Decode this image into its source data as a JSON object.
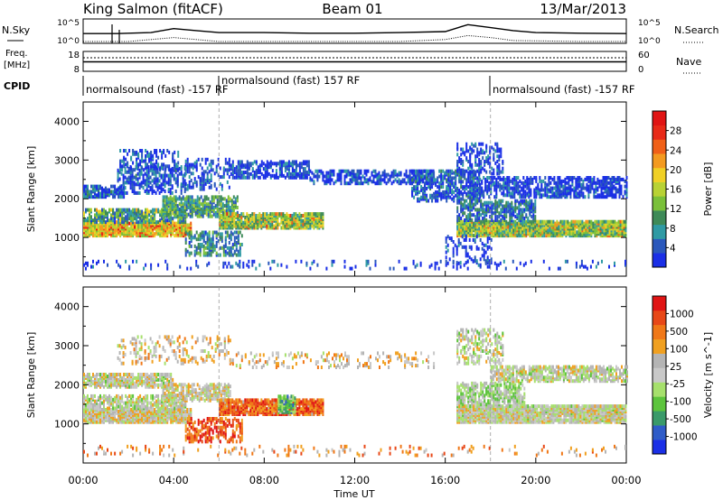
{
  "header": {
    "station": "King Salmon (fitACF)",
    "beam": "Beam 01",
    "date": "13/Mar/2013"
  },
  "time_axis": {
    "label": "Time UT",
    "ticks": [
      "00:00",
      "04:00",
      "08:00",
      "12:00",
      "16:00",
      "20:00",
      "00:00"
    ]
  },
  "top_strips": {
    "nsky": {
      "label": "N.Sky",
      "ticks": [
        "10^5",
        "10^0"
      ],
      "right_label": "N.Search",
      "right_ticks": [
        "10^5",
        "10^0"
      ]
    },
    "freq": {
      "label_line1": "Freq.",
      "label_line2": "[MHz]",
      "ticks": [
        "18",
        "8"
      ],
      "right_label": "Nave",
      "right_ticks": [
        "60",
        "0"
      ]
    },
    "cpid": {
      "label": "CPID",
      "segments": [
        {
          "start_h": 0.0,
          "end_h": 6.0,
          "text": "normalsound (fast) -157 RF"
        },
        {
          "start_h": 6.0,
          "end_h": 18.0,
          "text": "normalsound (fast) 157 RF"
        },
        {
          "start_h": 18.0,
          "end_h": 24.0,
          "text": "normalsound (fast) -157 RF"
        }
      ]
    }
  },
  "chart_data": [
    {
      "type": "heatmap",
      "panel": "power",
      "ylabel": "Slant Range [km]",
      "xlim_hours": [
        0,
        24
      ],
      "ylim": [
        0,
        4500
      ],
      "yticks": [
        1000,
        2000,
        3000,
        4000
      ],
      "colorbar": {
        "label": "Power [dB]",
        "ticks": [
          "4",
          "8",
          "12",
          "16",
          "20",
          "24",
          "28"
        ],
        "colors": [
          "#1a2fe6",
          "#2a58bc",
          "#2f9aa4",
          "#3e8a58",
          "#7ac03a",
          "#b8d235",
          "#f0d025",
          "#f39a20",
          "#f06018",
          "#e82a18",
          "#e01414"
        ]
      },
      "bands": [
        {
          "t0": 0.0,
          "t1": 4.8,
          "r0": 1000,
          "r1": 1350,
          "level": 0.55,
          "density": 0.92
        },
        {
          "t0": 0.0,
          "t1": 4.5,
          "r0": 1350,
          "r1": 1700,
          "level": 0.25,
          "density": 0.65
        },
        {
          "t0": 0.0,
          "t1": 1.8,
          "r0": 2000,
          "r1": 2300,
          "level": 0.12,
          "density": 0.75
        },
        {
          "t0": 1.5,
          "t1": 4.5,
          "r0": 2100,
          "r1": 2800,
          "level": 0.1,
          "density": 0.45
        },
        {
          "t0": 1.6,
          "t1": 4.2,
          "r0": 2700,
          "r1": 3200,
          "level": 0.08,
          "density": 0.3
        },
        {
          "t0": 3.5,
          "t1": 6.8,
          "r0": 1500,
          "r1": 2000,
          "level": 0.3,
          "density": 0.65
        },
        {
          "t0": 6.0,
          "t1": 10.6,
          "r0": 1200,
          "r1": 1600,
          "level": 0.4,
          "density": 0.85
        },
        {
          "t0": 4.5,
          "t1": 7.0,
          "r0": 500,
          "r1": 1100,
          "level": 0.25,
          "density": 0.4
        },
        {
          "t0": 4.5,
          "t1": 6.5,
          "r0": 2200,
          "r1": 3000,
          "level": 0.08,
          "density": 0.3
        },
        {
          "t0": 6.5,
          "t1": 10.0,
          "r0": 2500,
          "r1": 2950,
          "level": 0.07,
          "density": 0.55
        },
        {
          "t0": 10.0,
          "t1": 15.5,
          "r0": 2350,
          "r1": 2700,
          "level": 0.06,
          "density": 0.45
        },
        {
          "t0": 14.5,
          "t1": 17.5,
          "r0": 1900,
          "r1": 2700,
          "level": 0.12,
          "density": 0.55
        },
        {
          "t0": 16.5,
          "t1": 24.0,
          "r0": 1000,
          "r1": 1400,
          "level": 0.38,
          "density": 0.92
        },
        {
          "t0": 16.5,
          "t1": 20.0,
          "r0": 1400,
          "r1": 1900,
          "level": 0.18,
          "density": 0.55
        },
        {
          "t0": 17.5,
          "t1": 24.0,
          "r0": 2000,
          "r1": 2500,
          "level": 0.06,
          "density": 0.55
        },
        {
          "t0": 16.5,
          "t1": 18.5,
          "r0": 2600,
          "r1": 3400,
          "level": 0.08,
          "density": 0.35
        },
        {
          "t0": 16.0,
          "t1": 18.0,
          "r0": 300,
          "r1": 1000,
          "level": 0.05,
          "density": 0.2
        },
        {
          "t0": 0.0,
          "t1": 24.0,
          "r0": 150,
          "r1": 350,
          "level": 0.05,
          "density": 0.1
        }
      ]
    },
    {
      "type": "heatmap",
      "panel": "velocity",
      "ylabel": "Slant Range [km]",
      "xlim_hours": [
        0,
        24
      ],
      "ylim": [
        0,
        4500
      ],
      "yticks": [
        1000,
        2000,
        3000,
        4000
      ],
      "colorbar": {
        "label": "Velocity [m s^-1]",
        "ticks": [
          "1000",
          "500",
          "100",
          "25",
          "-25",
          "-100",
          "-500",
          "-1000"
        ],
        "colors": [
          "#1a2fe6",
          "#2f5cc8",
          "#3a9a6a",
          "#5cc43c",
          "#a6e06c",
          "#c8c8c8",
          "#b4b4b4",
          "#f0a020",
          "#f07818",
          "#e84818",
          "#e01414"
        ]
      },
      "bands": [
        {
          "t0": 0.0,
          "t1": 4.8,
          "r0": 1000,
          "r1": 1350,
          "level": 0.55,
          "density": 0.92
        },
        {
          "t0": 0.0,
          "t1": 4.5,
          "r0": 1350,
          "r1": 1700,
          "level": 0.5,
          "density": 0.6
        },
        {
          "t0": 0.0,
          "t1": 4.0,
          "r0": 1900,
          "r1": 2250,
          "level": 0.52,
          "density": 0.75
        },
        {
          "t0": 3.5,
          "t1": 6.5,
          "r0": 1550,
          "r1": 2000,
          "level": 0.55,
          "density": 0.55
        },
        {
          "t0": 6.0,
          "t1": 10.6,
          "r0": 1200,
          "r1": 1600,
          "level": 0.8,
          "density": 0.85
        },
        {
          "t0": 8.6,
          "t1": 9.4,
          "r0": 1250,
          "r1": 1700,
          "level": 0.32,
          "density": 0.8
        },
        {
          "t0": 4.5,
          "t1": 7.0,
          "r0": 500,
          "r1": 1100,
          "level": 0.85,
          "density": 0.4
        },
        {
          "t0": 1.5,
          "t1": 6.5,
          "r0": 2500,
          "r1": 3200,
          "level": 0.6,
          "density": 0.2
        },
        {
          "t0": 6.5,
          "t1": 15.5,
          "r0": 2400,
          "r1": 2800,
          "level": 0.6,
          "density": 0.15
        },
        {
          "t0": 16.5,
          "t1": 24.0,
          "r0": 1000,
          "r1": 1450,
          "level": 0.53,
          "density": 0.92
        },
        {
          "t0": 16.5,
          "t1": 19.5,
          "r0": 1450,
          "r1": 2000,
          "level": 0.45,
          "density": 0.55
        },
        {
          "t0": 18.0,
          "t1": 24.0,
          "r0": 2050,
          "r1": 2450,
          "level": 0.52,
          "density": 0.6
        },
        {
          "t0": 16.5,
          "t1": 18.5,
          "r0": 2500,
          "r1": 3400,
          "level": 0.5,
          "density": 0.35
        },
        {
          "t0": 0.0,
          "t1": 24.0,
          "r0": 150,
          "r1": 400,
          "level": 0.7,
          "density": 0.08
        }
      ]
    },
    {
      "type": "line",
      "panel": "n-sky",
      "series": [
        {
          "x": [
            0,
            1.5,
            3,
            4,
            5,
            6,
            8,
            10,
            12,
            14,
            16,
            17,
            18,
            19,
            20,
            22,
            24
          ],
          "y": [
            0.4,
            0.4,
            0.45,
            0.65,
            0.55,
            0.45,
            0.45,
            0.42,
            0.42,
            0.45,
            0.5,
            0.85,
            0.7,
            0.55,
            0.45,
            0.42,
            0.4
          ]
        },
        {
          "x": [
            0,
            2,
            4,
            5,
            6,
            10,
            14,
            16,
            17,
            18,
            19,
            22,
            24
          ],
          "y": [
            0.0,
            0.0,
            0.2,
            0.1,
            0.0,
            0.0,
            0.0,
            0.1,
            0.3,
            0.2,
            0.05,
            0.0,
            0.0
          ]
        }
      ]
    }
  ]
}
